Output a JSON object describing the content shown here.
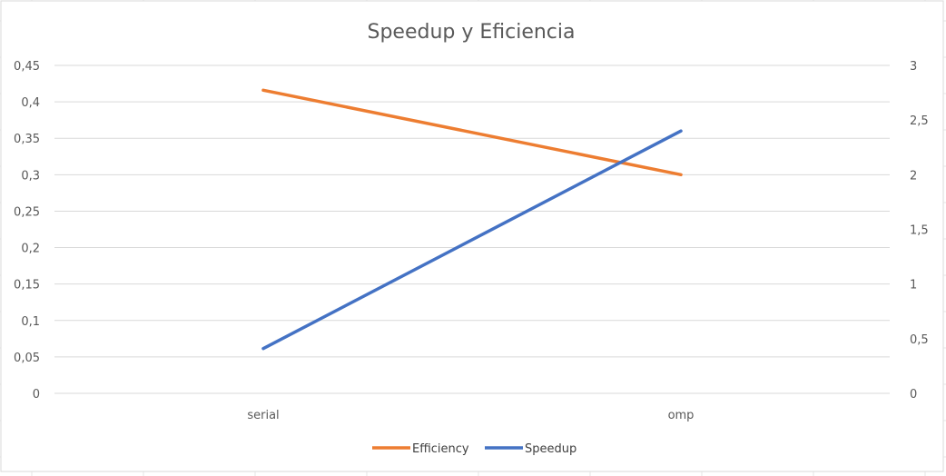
{
  "chart_data": {
    "type": "line",
    "title": "Speedup y Eficiencia",
    "categories": [
      "serial",
      "omp"
    ],
    "y_left": {
      "ticks": [
        "0",
        "0,05",
        "0,1",
        "0,15",
        "0,2",
        "0,25",
        "0,3",
        "0,35",
        "0,4",
        "0,45"
      ],
      "ylim": [
        0,
        0.45
      ]
    },
    "y_right": {
      "ticks": [
        "0",
        "0,5",
        "1",
        "1,5",
        "2",
        "2,5",
        "3"
      ],
      "ylim": [
        0,
        3
      ]
    },
    "series": [
      {
        "name": "Efficiency",
        "axis": "left",
        "values": [
          0.416,
          0.3
        ],
        "color": "#ED7D31"
      },
      {
        "name": "Speedup",
        "axis": "right",
        "values": [
          0.41,
          2.4
        ],
        "color": "#4472C4"
      }
    ],
    "grid": true,
    "legend": "bottom"
  }
}
